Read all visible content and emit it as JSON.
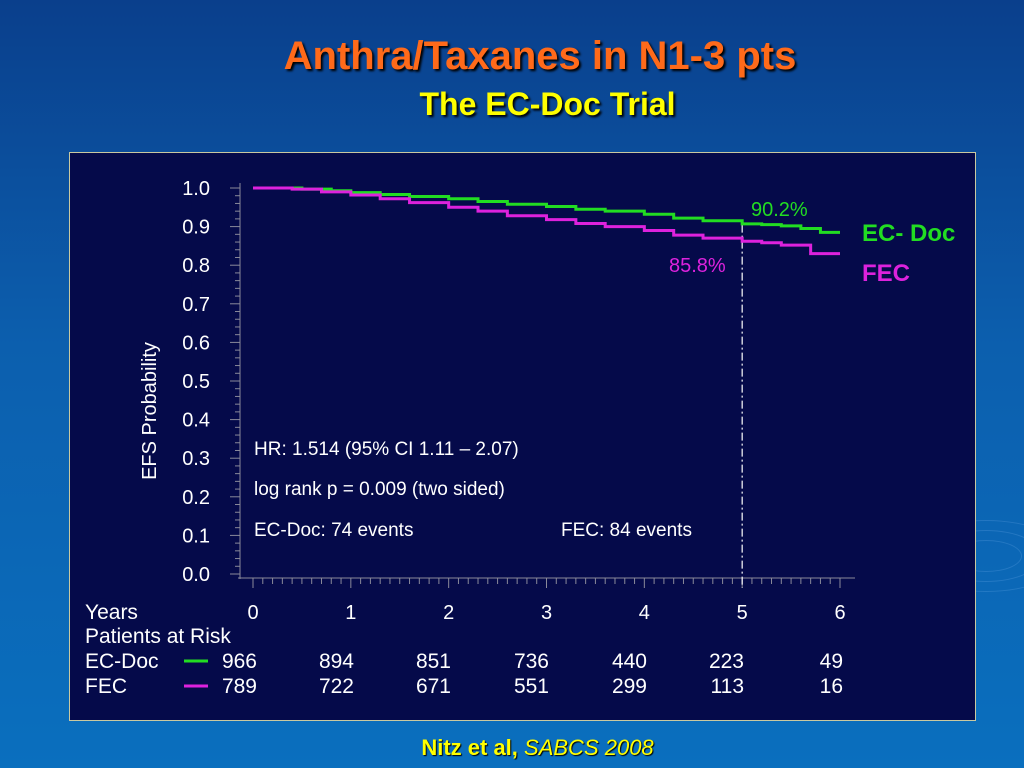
{
  "slide": {
    "title": "Anthra/Taxanes in N1-3 pts",
    "subtitle": "The EC-Doc Trial",
    "citation_author": "Nitz et al,",
    "citation_source": "SABCS 2008"
  },
  "colors": {
    "ec_doc": "#22dd22",
    "fec": "#dd22dd",
    "title": "#ff6a1a",
    "subtitle": "#ffff00"
  },
  "chart_data": {
    "type": "line",
    "ylabel": "EFS Probability",
    "xlabel": "Years",
    "ylim": [
      0,
      1.0
    ],
    "xlim": [
      0,
      6
    ],
    "y_ticks": [
      "0.0",
      "0.1",
      "0.2",
      "0.3",
      "0.4",
      "0.5",
      "0.6",
      "0.7",
      "0.8",
      "0.9",
      "1.0"
    ],
    "x_ticks": [
      "0",
      "1",
      "2",
      "3",
      "4",
      "5",
      "6"
    ],
    "series": [
      {
        "name": "EC- Doc",
        "x": [
          0,
          0.5,
          0.8,
          1.0,
          1.3,
          1.6,
          2.0,
          2.3,
          2.6,
          3.0,
          3.3,
          3.6,
          4.0,
          4.3,
          4.6,
          5.0,
          5.2,
          5.4,
          5.6,
          5.8,
          6.0
        ],
        "y": [
          1.0,
          0.997,
          0.993,
          0.988,
          0.983,
          0.978,
          0.972,
          0.965,
          0.958,
          0.952,
          0.945,
          0.94,
          0.932,
          0.922,
          0.915,
          0.907,
          0.905,
          0.902,
          0.895,
          0.885,
          0.885
        ],
        "end_label": "90.2%"
      },
      {
        "name": "FEC",
        "x": [
          0,
          0.4,
          0.7,
          1.0,
          1.3,
          1.6,
          2.0,
          2.3,
          2.6,
          3.0,
          3.3,
          3.6,
          4.0,
          4.3,
          4.6,
          5.0,
          5.2,
          5.4,
          5.7,
          6.0
        ],
        "y": [
          1.0,
          0.997,
          0.99,
          0.982,
          0.972,
          0.962,
          0.95,
          0.94,
          0.928,
          0.918,
          0.908,
          0.9,
          0.89,
          0.878,
          0.87,
          0.862,
          0.858,
          0.852,
          0.83,
          0.83
        ],
        "end_label": "85.8%"
      }
    ],
    "reference_line_x": 5,
    "annotations": [
      "HR: 1.514 (95% CI 1.11 – 2.07)",
      "log rank p = 0.009 (two sided)",
      "EC-Doc:   74 events",
      "FEC:  84 events"
    ],
    "risk_table": {
      "header": "Patients at Risk",
      "rows": [
        {
          "label": "EC-Doc",
          "values": [
            "966",
            "894",
            "851",
            "736",
            "440",
            "223",
            "49"
          ]
        },
        {
          "label": "FEC",
          "values": [
            "789",
            "722",
            "671",
            "551",
            "299",
            "113",
            "16"
          ]
        }
      ]
    }
  }
}
